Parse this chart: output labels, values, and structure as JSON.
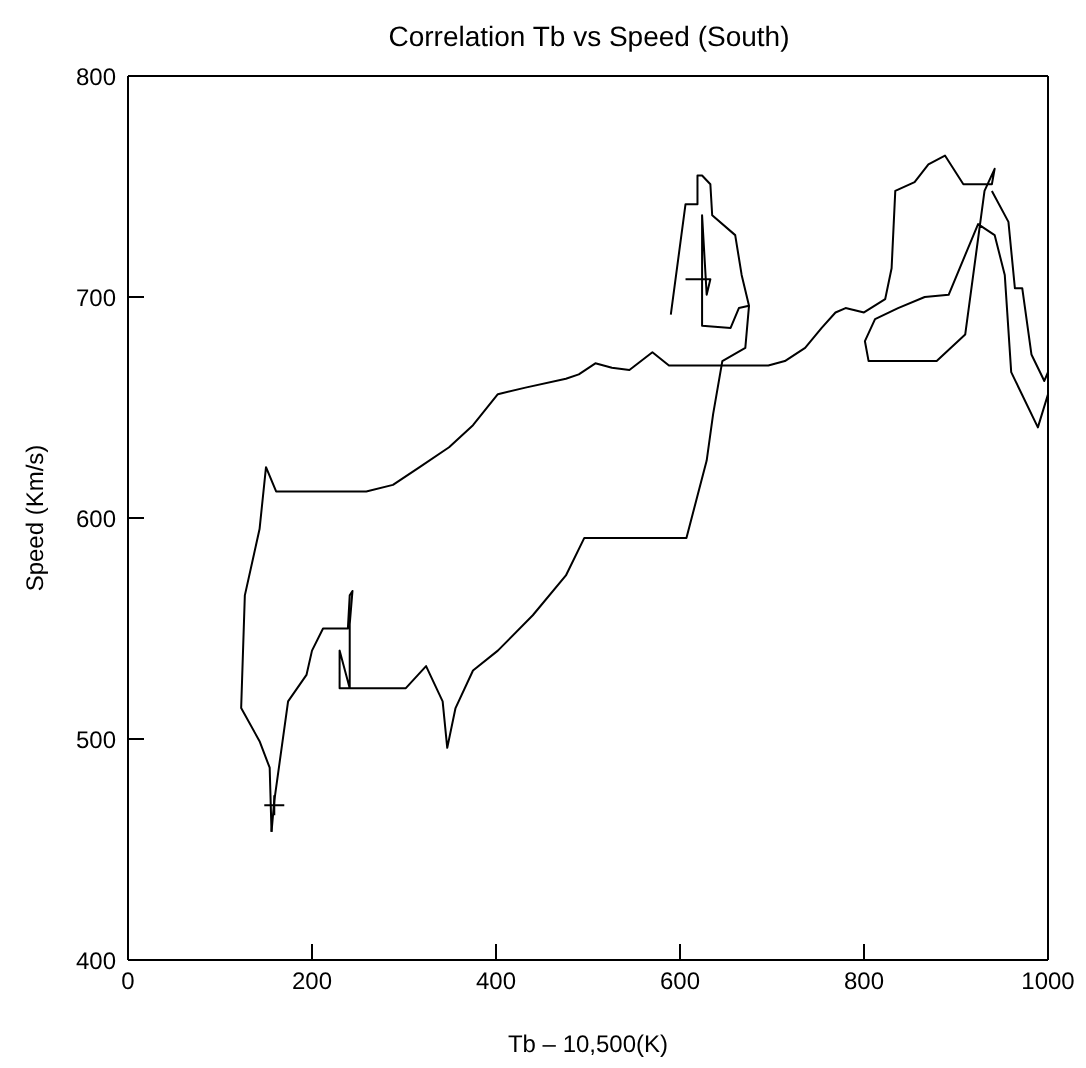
{
  "chart_data": {
    "type": "line",
    "title": "Correlation Tb vs Speed (South)",
    "xlabel": "Tb – 10,500(K)",
    "ylabel": "Speed (Km/s)",
    "xlim": [
      0,
      1000
    ],
    "xticks": [
      0,
      200,
      400,
      600,
      800,
      1000
    ],
    "ylim": [
      400,
      800
    ],
    "yticks": [
      400,
      500,
      600,
      700,
      800
    ],
    "marker": "none",
    "line_style": "solid",
    "series": [
      {
        "color": "#000000",
        "x": [
          156,
          154,
          143,
          123,
          127,
          143,
          150,
          161,
          259,
          288,
          317,
          349,
          375,
          402,
          432,
          476,
          490,
          508,
          526,
          545,
          570,
          588,
          696,
          714,
          736,
          754,
          769,
          780,
          800,
          823,
          830,
          834,
          855,
          870,
          888,
          908,
          939,
          942,
          931,
          910,
          879,
          805,
          801,
          812,
          837,
          866,
          892,
          924,
          942,
          953,
          960,
          989,
          1000
        ],
        "values": [
          458,
          487,
          499,
          514,
          565,
          595,
          623,
          612,
          612,
          615,
          623,
          632,
          642,
          656,
          659,
          663,
          665,
          670,
          668,
          667,
          675,
          669,
          669,
          671,
          677,
          686,
          693,
          695,
          693,
          699,
          713,
          748,
          752,
          760,
          764,
          751,
          751,
          758,
          748,
          683,
          671,
          671,
          680,
          690,
          695,
          700,
          701,
          733,
          728,
          710,
          666,
          641,
          656
        ]
      },
      {
        "color": "#000000",
        "x": [
          156,
          159,
          174,
          194,
          200,
          212,
          239,
          241,
          244,
          241,
          241,
          230,
          230,
          302,
          324,
          342,
          347,
          356,
          375,
          402,
          440,
          476,
          496,
          607,
          629,
          636,
          646,
          671,
          675,
          667,
          660,
          635,
          633,
          624,
          619,
          619,
          606,
          590
        ],
        "values": [
          458,
          472,
          517,
          529,
          540,
          550,
          550,
          565,
          567,
          552,
          523,
          540,
          523,
          523,
          533,
          517,
          496,
          514,
          531,
          540,
          556,
          574,
          591,
          591,
          626,
          647,
          671,
          677,
          696,
          710,
          728,
          737,
          751,
          755,
          755,
          742,
          742,
          692
        ]
      },
      {
        "color": "#000000",
        "x": [
          939,
          957,
          964,
          972,
          978,
          982,
          996,
          1000
        ],
        "values": [
          748,
          734,
          704,
          704,
          686,
          674,
          662,
          666
        ]
      },
      {
        "color": "#000000",
        "x": [
          606,
          633,
          629,
          624,
          624,
          655,
          664,
          675
        ],
        "values": [
          708,
          708,
          701,
          737,
          687,
          686,
          695,
          696
        ]
      },
      {
        "type": "scatter",
        "color": "#000000",
        "marker": "cross",
        "x": [
          159
        ],
        "values": [
          470
        ]
      }
    ]
  }
}
